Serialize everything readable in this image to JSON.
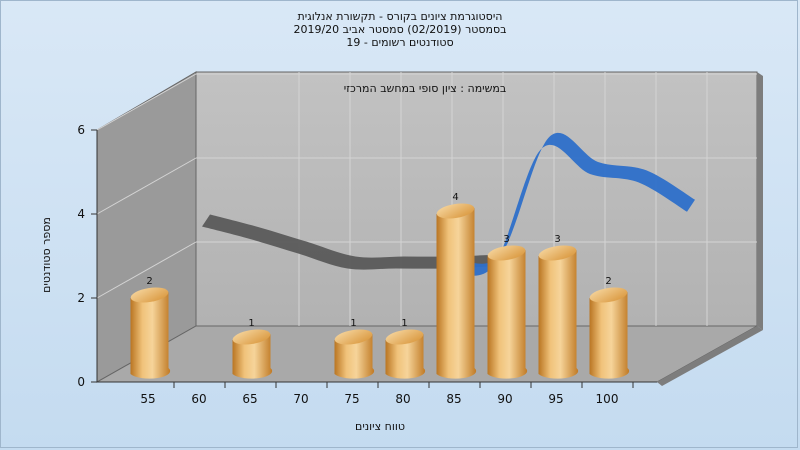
{
  "titles": {
    "line1": "היסטוגרמת ציונים בקורס - תקשורת אנלוגית",
    "line2": "בסמסטר  (02/2019)  סמסטר אביב 2019/20",
    "line3": "סטודנטים רשומים - 19"
  },
  "chart_data": {
    "type": "bar",
    "title": "במשימה : ציון סופי במחשב המרכזי",
    "xlabel": "טווח ציונים",
    "ylabel": "מספר סטודנטים",
    "x_ticks": [
      "55",
      "60",
      "65",
      "70",
      "75",
      "80",
      "85",
      "90",
      "95",
      "100"
    ],
    "y_ticks": [
      "0",
      "2",
      "4",
      "6"
    ],
    "ylim": [
      0,
      6
    ],
    "categories": [
      "55",
      "60",
      "65",
      "70",
      "75",
      "80",
      "85",
      "90",
      "95",
      "100"
    ],
    "values": [
      2,
      0,
      1,
      0,
      1,
      1,
      4,
      3,
      3,
      2
    ],
    "labels": [
      "2",
      "",
      "1",
      "",
      "1",
      "1",
      "4",
      "3",
      "3",
      "2"
    ],
    "trend_values": [
      2.75,
      2.45,
      2.1,
      1.75,
      1.75,
      1.75,
      1.8,
      4.6,
      4.0,
      3.8,
      3.1
    ],
    "grid": true,
    "colors": {
      "bar": "#e2a24a",
      "trend_gray": "#5a5a5a",
      "trend_blue": "#2d6fc9"
    }
  }
}
